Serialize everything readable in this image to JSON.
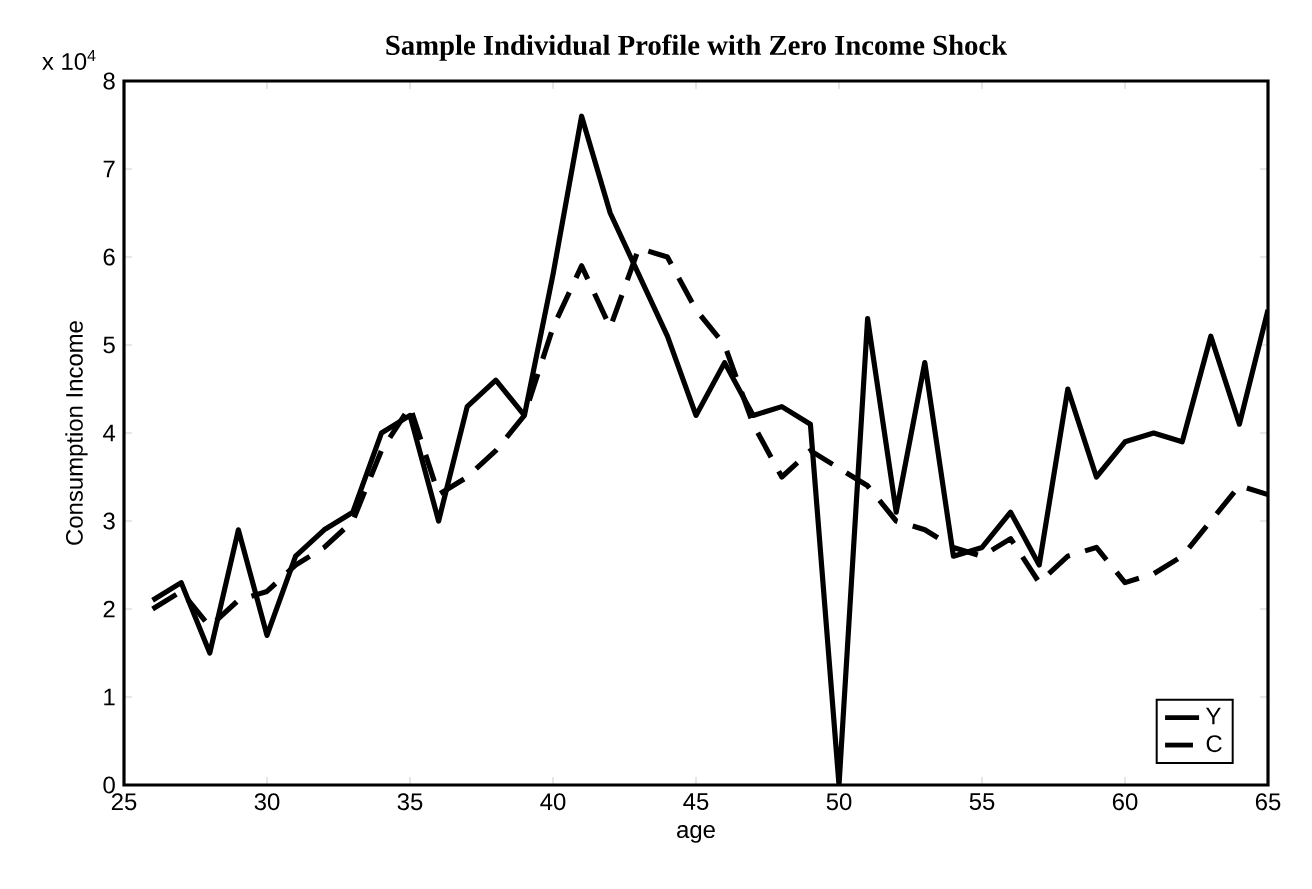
{
  "chart_data": {
    "type": "line",
    "title": "Sample Individual Profile with Zero Income Shock",
    "xlabel": "age",
    "ylabel": "Consumption   Income",
    "annotations": [
      "x 10$^{4}$"
    ],
    "x": [
      26,
      27,
      28,
      29,
      30,
      31,
      32,
      33,
      34,
      35,
      36,
      37,
      38,
      39,
      40,
      41,
      42,
      43,
      44,
      45,
      46,
      47,
      48,
      49,
      50,
      51,
      52,
      53,
      54,
      55,
      56,
      57,
      58,
      59,
      60,
      61,
      62,
      63,
      64,
      65
    ],
    "xlim": [
      25,
      65
    ],
    "ylim": [
      0,
      8
    ],
    "xticks": [
      25,
      30,
      35,
      40,
      45,
      50,
      55,
      60,
      65
    ],
    "yticks": [
      0,
      1,
      2,
      3,
      4,
      5,
      6,
      7,
      8
    ],
    "legend": "bottom right",
    "grid": false,
    "series": [
      {
        "name": "Y",
        "color": "#000000",
        "line_style": "solid",
        "values": [
          2.1,
          2.3,
          1.5,
          2.9,
          1.7,
          2.6,
          2.9,
          3.1,
          4.0,
          4.2,
          3.0,
          4.3,
          4.6,
          4.2,
          5.8,
          7.6,
          6.5,
          5.8,
          5.1,
          4.2,
          4.8,
          4.2,
          4.3,
          4.1,
          0,
          5.3,
          3.1,
          4.8,
          2.6,
          2.7,
          3.1,
          2.5,
          4.5,
          3.5,
          3.9,
          4.0,
          3.9,
          5.1,
          4.1,
          5.4
        ]
      },
      {
        "name": "C",
        "color": "#000000",
        "line_style": "dashed",
        "values": [
          2.0,
          2.2,
          1.8,
          2.1,
          2.2,
          2.5,
          2.7,
          3.0,
          3.8,
          4.3,
          3.3,
          3.5,
          3.8,
          4.2,
          5.2,
          5.9,
          5.2,
          6.1,
          6.0,
          5.4,
          5.0,
          4.1,
          3.5,
          3.8,
          3.6,
          3.4,
          3.0,
          2.9,
          2.7,
          2.6,
          2.8,
          2.3,
          2.6,
          2.7,
          2.3,
          2.4,
          2.6,
          3.0,
          3.4,
          3.3
        ]
      }
    ]
  }
}
